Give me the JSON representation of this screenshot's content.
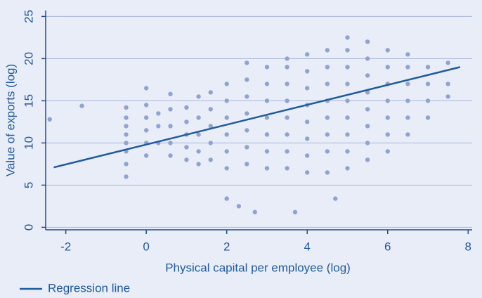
{
  "chart_data": {
    "type": "scatter",
    "xlabel": "Physical capital per employee (log)",
    "ylabel": "Value of exports (log)",
    "xlim": [
      -2.5,
      8.1
    ],
    "xticks": [
      -2,
      0,
      2,
      4,
      6,
      8
    ],
    "ylim": [
      -0.3,
      25.7
    ],
    "yticks": [
      0,
      5,
      10,
      15,
      20,
      25
    ],
    "grid": true,
    "series": [
      {
        "type": "scatter",
        "color": "#8fa3d3",
        "x": [
          -0.5,
          -0.5,
          -0.5,
          -0.5,
          -0.5,
          -0.5,
          -0.5,
          -0.5,
          0,
          0,
          0,
          0,
          0,
          0,
          0.3,
          0.3,
          0.3,
          0.6,
          0.6,
          0.6,
          0.6,
          0.6,
          1,
          1,
          1,
          1,
          1,
          1.3,
          1.3,
          1.3,
          1.3,
          1.3,
          1.6,
          1.6,
          1.6,
          1.6,
          1.6,
          2,
          2,
          2,
          2,
          2,
          2,
          2.5,
          2.5,
          2.5,
          2.5,
          2.5,
          2.5,
          2.5,
          3,
          3,
          3,
          3,
          3,
          3,
          3,
          3.5,
          3.5,
          3.5,
          3.5,
          3.5,
          3.5,
          3.5,
          3.5,
          4,
          4,
          4,
          4,
          4,
          4,
          4,
          4,
          4.5,
          4.5,
          4.5,
          4.5,
          4.5,
          4.5,
          4.5,
          4.5,
          5,
          5,
          5,
          5,
          5,
          5,
          5,
          5,
          5,
          5.5,
          5.5,
          5.5,
          5.5,
          5.5,
          5.5,
          5.5,
          5.5,
          6,
          6,
          6,
          6,
          6,
          6,
          6,
          6.5,
          6.5,
          6.5,
          6.5,
          6.5,
          6.5,
          7,
          7,
          7,
          7,
          7.5,
          7.5,
          7.5,
          -2.4,
          -1.6,
          2.3,
          2.7,
          3.7,
          2.0,
          4.7
        ],
        "y": [
          6,
          7.5,
          9,
          10,
          11,
          12,
          13,
          14.2,
          8.5,
          10,
          11.5,
          13,
          14.5,
          16.5,
          10,
          12,
          13.5,
          8.5,
          10,
          12,
          14,
          15.8,
          8,
          9.5,
          11,
          12.5,
          14.2,
          7.5,
          9,
          11,
          13,
          15.5,
          8,
          10,
          12,
          14,
          16,
          7,
          9,
          11,
          13,
          15,
          17,
          7.5,
          9.5,
          11.5,
          13.5,
          15.5,
          17.5,
          19.5,
          7,
          9,
          11,
          13,
          15,
          17,
          19,
          7,
          9,
          11,
          13,
          15,
          17,
          19,
          20,
          6.5,
          8.5,
          10.5,
          12.5,
          14.5,
          16.5,
          18.5,
          20.5,
          6.5,
          9,
          11,
          13,
          15,
          17,
          19,
          21,
          7,
          9,
          11,
          13,
          15,
          17,
          19,
          21,
          22.5,
          8,
          10,
          12,
          14,
          16,
          18,
          20,
          22,
          9,
          11,
          13,
          15,
          17,
          19,
          21,
          11,
          13,
          15,
          17,
          19,
          20.5,
          13,
          15,
          17,
          19,
          15.5,
          17,
          19.5,
          12.8,
          14.4,
          2.5,
          1.8,
          1.8,
          3.4,
          3.4
        ]
      },
      {
        "type": "line",
        "name": "Regression line",
        "color": "#1f5aa0",
        "x": [
          -2.3,
          7.8
        ],
        "y": [
          7.1,
          19.0
        ]
      }
    ]
  }
}
